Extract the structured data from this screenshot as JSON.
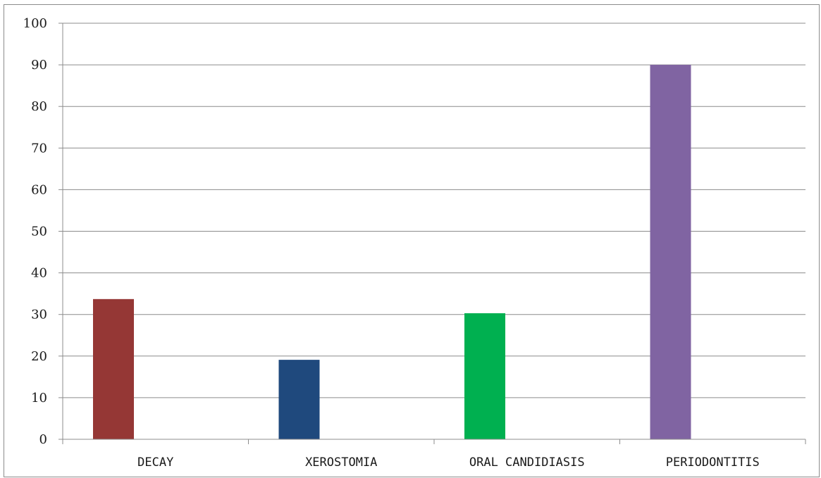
{
  "chart_data": {
    "type": "bar",
    "categories": [
      "DECAY",
      "XEROSTOMIA",
      "ORAL CANDIDIASIS",
      "PERIODONTITIS"
    ],
    "values": [
      33.7,
      19.1,
      30.3,
      90
    ],
    "colors": [
      "#953735",
      "#1f497d",
      "#00b050",
      "#8064a2"
    ],
    "ylim": [
      0,
      100
    ],
    "yticks": [
      0,
      10,
      20,
      30,
      40,
      50,
      60,
      70,
      80,
      90,
      100
    ],
    "grid": true,
    "legend": "none",
    "title": "",
    "xlabel": "",
    "ylabel": ""
  }
}
